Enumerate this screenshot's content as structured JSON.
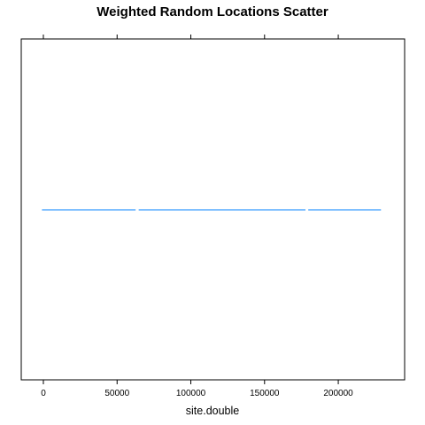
{
  "chart_data": {
    "type": "scatter",
    "title": "Weighted Random Locations Scatter",
    "xlabel": "site.double",
    "ylabel": "",
    "xlim": [
      -15000,
      245000
    ],
    "x_ticks": [
      0,
      50000,
      100000,
      150000,
      200000
    ],
    "x_tick_labels": [
      "0",
      "50000",
      "100000",
      "150000",
      "200000"
    ],
    "y_value": 1,
    "point_color": "#0080ff",
    "x_range": [
      0,
      228000
    ],
    "grid": false,
    "legend": "none",
    "series": [
      {
        "values": [
          0,
          1200,
          2600,
          3900,
          5100,
          6500,
          8200,
          9400,
          10800,
          12300,
          13900,
          15200,
          16400,
          17900,
          19500,
          20800,
          22100,
          23600,
          25000,
          26700,
          28200,
          29500,
          31000,
          32600,
          33900,
          35400,
          36800,
          38100,
          39700,
          41300,
          42600,
          44000,
          45500,
          46900,
          48400,
          49800,
          51300,
          52700,
          54200,
          55600,
          57100,
          58500,
          60000,
          61600,
          65600,
          67000,
          68500,
          69900,
          71300,
          72800,
          74100,
          75600,
          77200,
          78600,
          80000,
          81500,
          82900,
          84200,
          85700,
          87100,
          88600,
          90000,
          91500,
          93000,
          94400,
          95800,
          97300,
          98700,
          100200,
          101700,
          103100,
          104500,
          106000,
          107400,
          108900,
          110300,
          111800,
          113200,
          114600,
          116100,
          117500,
          119000,
          120400,
          121900,
          123300,
          124700,
          126200,
          127600,
          129100,
          130500,
          132000,
          133400,
          134900,
          136300,
          137800,
          139200,
          140700,
          142100,
          143600,
          145000,
          146500,
          147900,
          149400,
          150800,
          152300,
          153700,
          155100,
          156600,
          158000,
          159500,
          160900,
          162400,
          163800,
          165300,
          166700,
          168200,
          169600,
          171100,
          172500,
          173900,
          175400,
          176800,
          180600,
          182100,
          183500,
          185000,
          186400,
          187900,
          189300,
          190700,
          192200,
          193600,
          195100,
          196500,
          198000,
          199400,
          200900,
          202300,
          203800,
          205200,
          206600,
          208100,
          209500,
          211000,
          212400,
          213900,
          215300,
          216800,
          218200,
          219600,
          221100,
          222500,
          224000,
          225400,
          226900,
          228000
        ]
      }
    ]
  }
}
